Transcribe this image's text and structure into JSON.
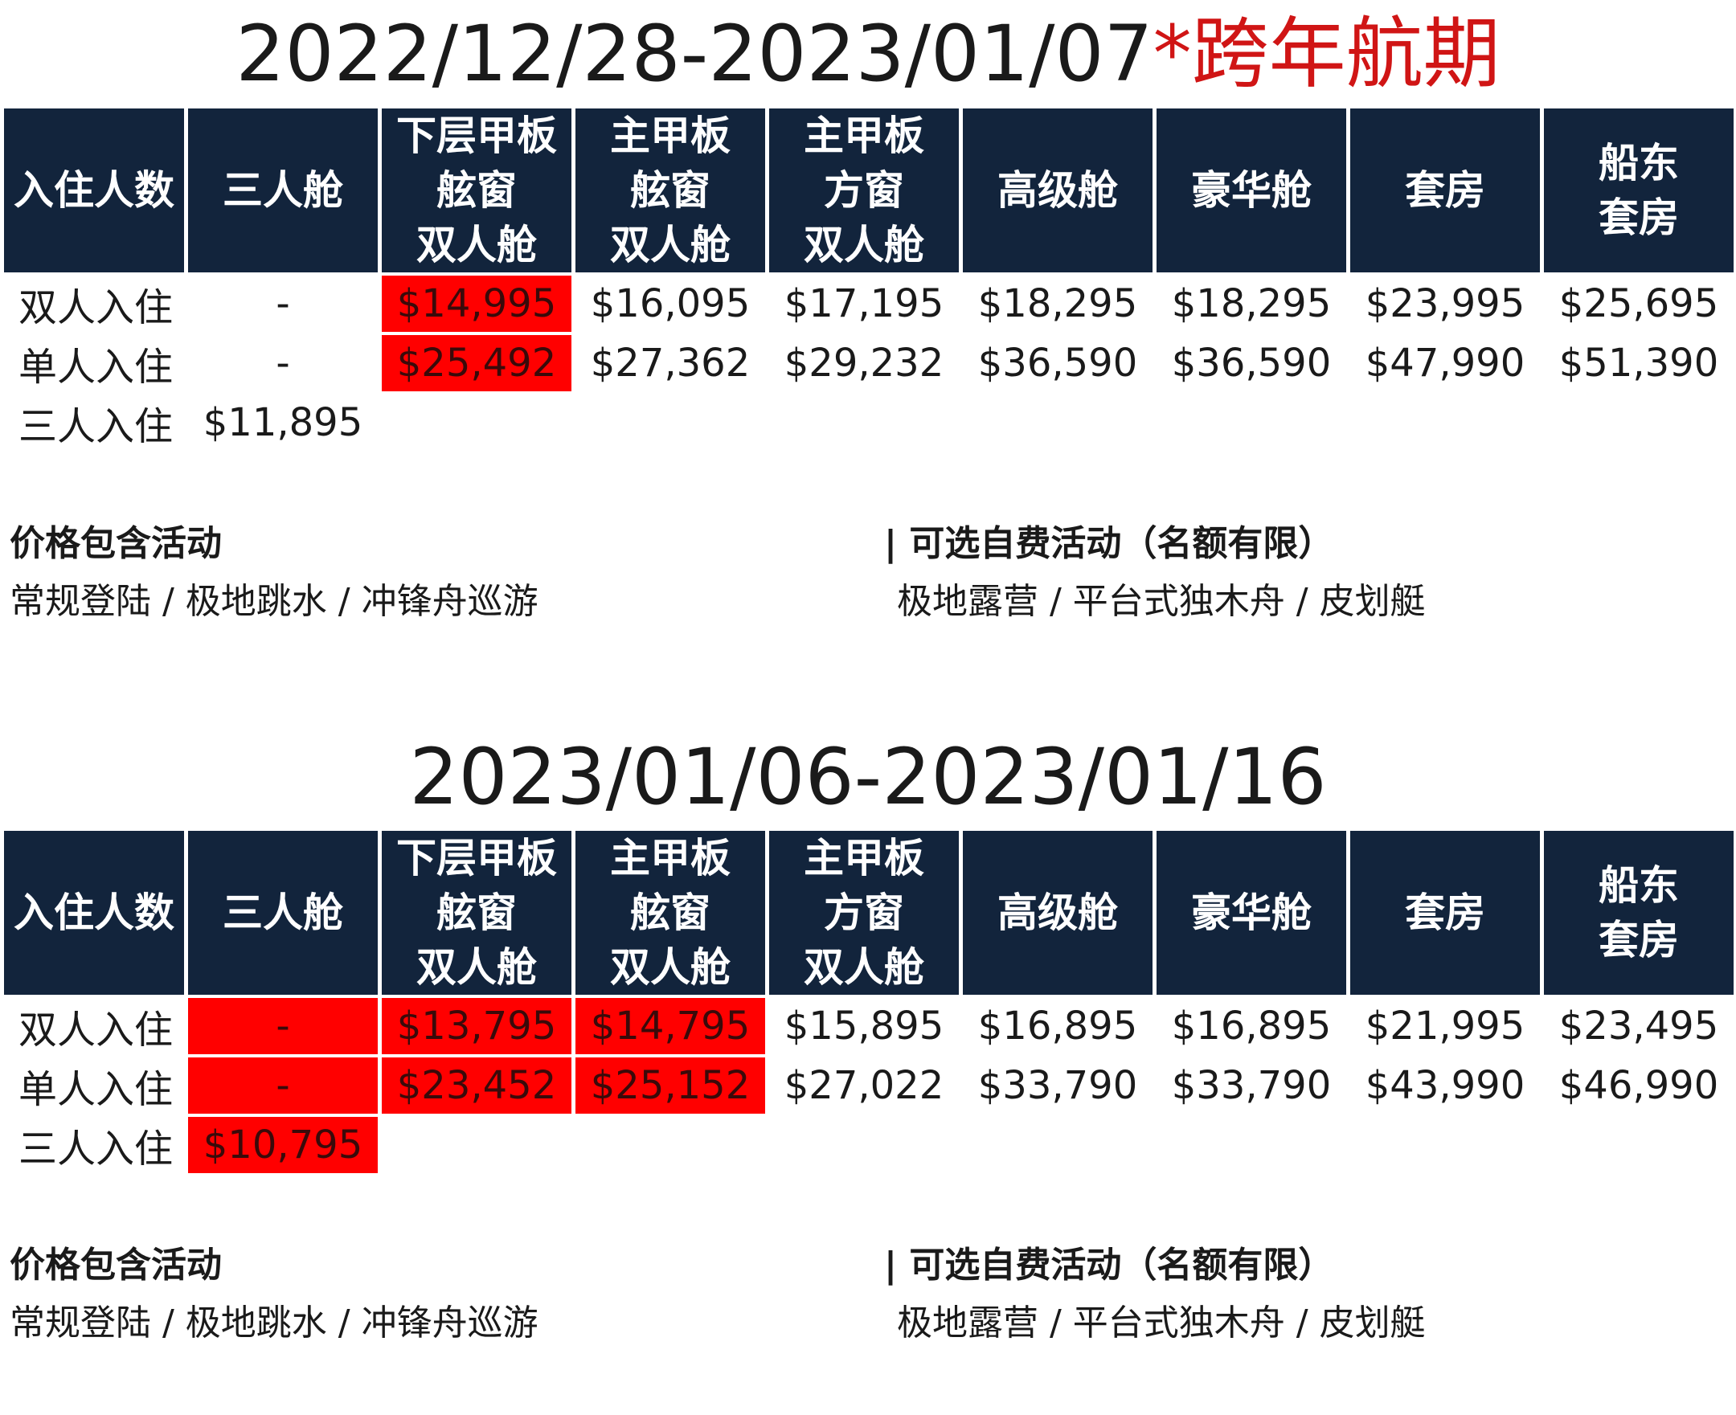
{
  "colors": {
    "header_bg": "#12243c",
    "highlight": "#ff0000",
    "title_accent": "#d01515"
  },
  "sections": [
    {
      "title_main": "2022/12/28-2023/01/07",
      "title_accent": "*跨年航期",
      "header": [
        "入住人数",
        "三人舱",
        "下层甲板\n舷窗\n双人舱",
        "主甲板\n舷窗\n双人舱",
        "主甲板\n方窗\n双人舱",
        "高级舱",
        "豪华舱",
        "套房",
        "船东\n套房"
      ],
      "rows": [
        {
          "label": "双人入住",
          "cells": [
            "-",
            "$14,995",
            "$16,095",
            "$17,195",
            "$18,295",
            "$18,295",
            "$23,995",
            "$25,695"
          ],
          "highlight": [
            false,
            true,
            false,
            false,
            false,
            false,
            false,
            false
          ]
        },
        {
          "label": "单人入住",
          "cells": [
            "-",
            "$25,492",
            "$27,362",
            "$29,232",
            "$36,590",
            "$36,590",
            "$47,990",
            "$51,390"
          ],
          "highlight": [
            false,
            true,
            false,
            false,
            false,
            false,
            false,
            false
          ]
        },
        {
          "label": "三人入住",
          "cells": [
            "$11,895",
            "",
            "",
            "",
            "",
            "",
            "",
            ""
          ],
          "highlight": [
            false,
            false,
            false,
            false,
            false,
            false,
            false,
            false
          ]
        }
      ],
      "included_heading": "价格包含活动",
      "included_list": "常规登陆 / 极地跳水 / 冲锋舟巡游",
      "optional_heading": "| 可选自费活动（名额有限）",
      "optional_list": "极地露营 / 平台式独木舟 / 皮划艇"
    },
    {
      "title_main": "2023/01/06-2023/01/16",
      "title_accent": "",
      "header": [
        "入住人数",
        "三人舱",
        "下层甲板\n舷窗\n双人舱",
        "主甲板\n舷窗\n双人舱",
        "主甲板\n方窗\n双人舱",
        "高级舱",
        "豪华舱",
        "套房",
        "船东\n套房"
      ],
      "rows": [
        {
          "label": "双人入住",
          "cells": [
            "-",
            "$13,795",
            "$14,795",
            "$15,895",
            "$16,895",
            "$16,895",
            "$21,995",
            "$23,495"
          ],
          "highlight": [
            true,
            true,
            true,
            false,
            false,
            false,
            false,
            false
          ]
        },
        {
          "label": "单人入住",
          "cells": [
            "-",
            "$23,452",
            "$25,152",
            "$27,022",
            "$33,790",
            "$33,790",
            "$43,990",
            "$46,990"
          ],
          "highlight": [
            true,
            true,
            true,
            false,
            false,
            false,
            false,
            false
          ]
        },
        {
          "label": "三人入住",
          "cells": [
            "$10,795",
            "",
            "",
            "",
            "",
            "",
            "",
            ""
          ],
          "highlight": [
            true,
            false,
            false,
            false,
            false,
            false,
            false,
            false
          ]
        }
      ],
      "included_heading": "价格包含活动",
      "included_list": "常规登陆 / 极地跳水 / 冲锋舟巡游",
      "optional_heading": "| 可选自费活动（名额有限）",
      "optional_list": "极地露营 / 平台式独木舟 / 皮划艇"
    }
  ]
}
